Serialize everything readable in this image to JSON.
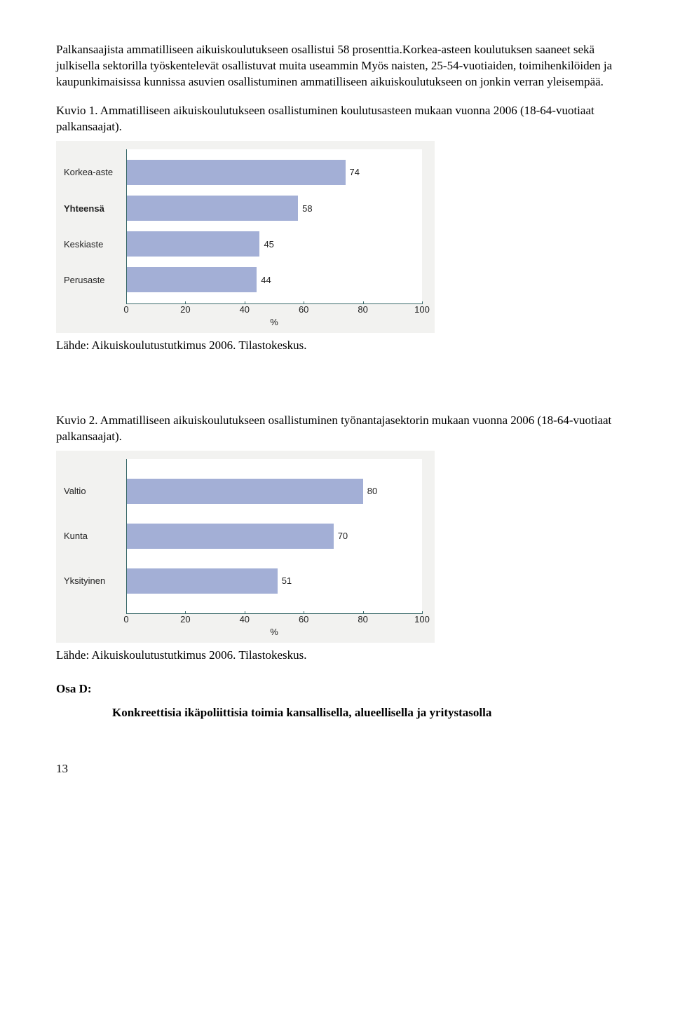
{
  "intro_paragraph": "Palkansaajista ammatilliseen aikuiskoulutukseen osallistui 58 prosenttia.Korkea-asteen koulutuksen saaneet sekä julkisella sektorilla työskentelevät osallistuvat muita useammin  Myös naisten, 25-54-vuotiaiden, toimihenkilöiden ja kaupunkimaisissa kunnissa asuvien osallistuminen ammatilliseen aikuiskoulutukseen on jonkin verran yleisempää.",
  "kuvio1_caption": "Kuvio 1. Ammatilliseen aikuiskoulutukseen osallistuminen koulutusasteen mukaan vuonna 2006 (18-64-vuotiaat palkansaajat).",
  "chart1": {
    "categories": [
      "Korkea-aste",
      "Yhteensä",
      "Keskiaste",
      "Perusaste"
    ],
    "bold": [
      false,
      true,
      false,
      false
    ],
    "values": [
      74,
      58,
      45,
      44
    ],
    "bar_color": "#a3afd6",
    "xticks": [
      0,
      20,
      40,
      60,
      80,
      100
    ],
    "xlabel": "%"
  },
  "source1": "Lähde: Aikuiskoulutustutkimus 2006. Tilastokeskus.",
  "kuvio2_caption": "Kuvio 2. Ammatilliseen aikuiskoulutukseen osallistuminen työnantajasektorin mukaan vuonna 2006 (18-64-vuotiaat palkansaajat).",
  "chart2": {
    "categories": [
      "Valtio",
      "Kunta",
      "Yksityinen"
    ],
    "bold": [
      false,
      false,
      false
    ],
    "values": [
      80,
      70,
      51
    ],
    "bar_color": "#a3afd6",
    "xticks": [
      0,
      20,
      40,
      60,
      80,
      100
    ],
    "xlabel": "%"
  },
  "source2": "Lähde: Aikuiskoulutustutkimus 2006. Tilastokeskus.",
  "osa_label": "Osa D:",
  "osa_content": "Konkreettisia ikäpoliittisia  toimia kansallisella, alueellisella ja yritystasolla",
  "page_number": "13"
}
